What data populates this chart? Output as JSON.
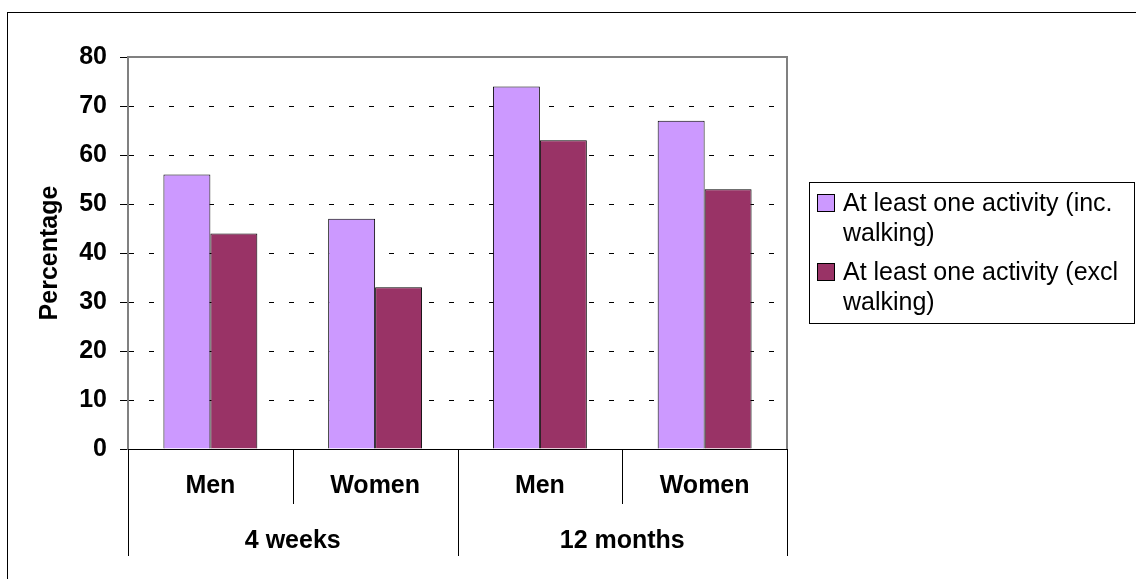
{
  "chart_data": {
    "type": "bar",
    "categories": [
      "Men",
      "Women",
      "Men",
      "Women"
    ],
    "series": [
      {
        "name": "At least one activity (inc. walking)",
        "color": "#cc99ff",
        "values": [
          56,
          47,
          74,
          67
        ]
      },
      {
        "name": "At least one activity (excl walking)",
        "color": "#993366",
        "values": [
          44,
          33,
          63,
          53
        ]
      }
    ],
    "ylabel": "Percentage",
    "ylim": [
      0,
      80
    ],
    "yticks": [
      0,
      10,
      20,
      30,
      40,
      50,
      60,
      70,
      80
    ],
    "grid": "y",
    "legend": "right",
    "annotations": [
      "4 weeks",
      "12 months"
    ]
  }
}
